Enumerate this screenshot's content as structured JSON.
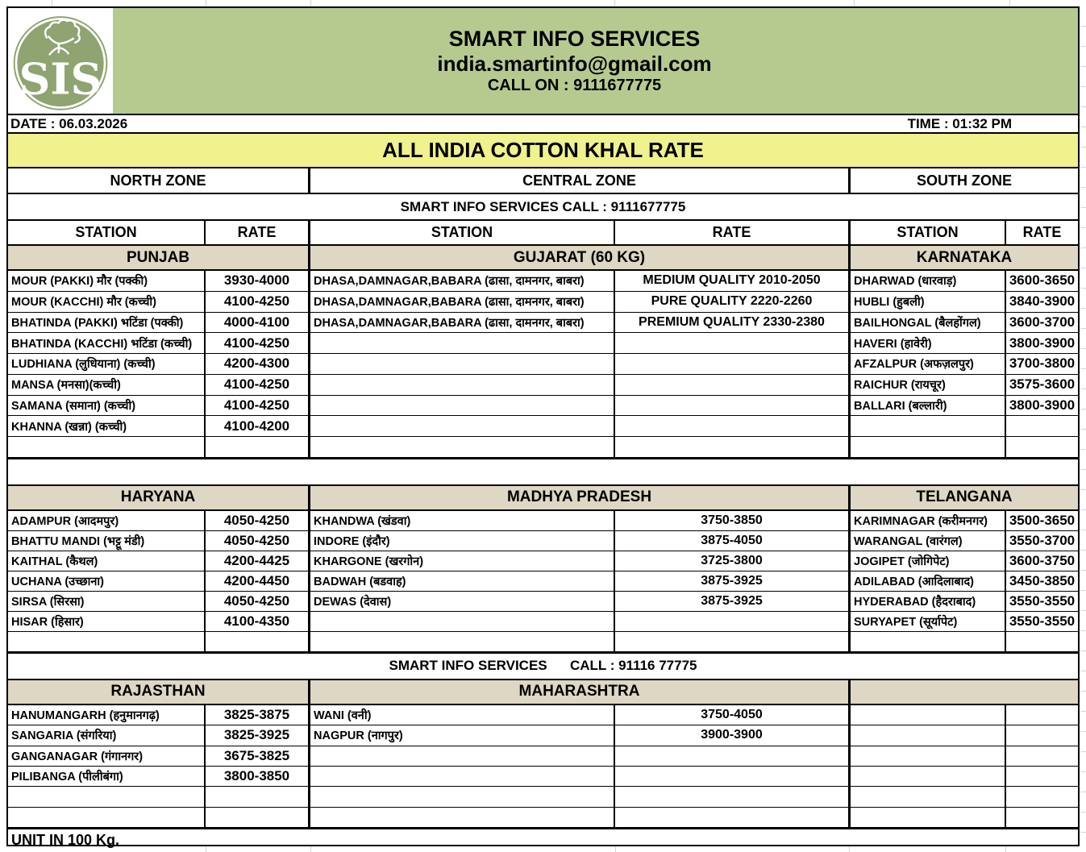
{
  "header": {
    "company": "SMART INFO SERVICES",
    "email": "india.smartinfo@gmail.com",
    "call_on": "CALL ON : 9111677775",
    "date": "DATE : 06.03.2026",
    "time": "TIME : 01:32 PM",
    "title": "ALL INDIA COTTON KHAL RATE"
  },
  "colors": {
    "banner_green": "#b6ca90",
    "title_yellow": "#eff28d",
    "section_beige": "#ddd7c3",
    "logo_green": "#8fa471"
  },
  "logo": {
    "icon": "cotton-plant-sis-monogram",
    "letters": "SIS"
  },
  "zones": [
    "NORTH ZONE",
    "CENTRAL ZONE",
    "SOUTH ZONE"
  ],
  "call_banner_top": "SMART INFO SERVICES CALL : 9111677775",
  "call_banner_mid": "SMART INFO SERVICES      CALL : 91116 77775",
  "column_headers": [
    "STATION",
    "RATE",
    "STATION",
    "RATE",
    "STATION",
    "RATE"
  ],
  "footer": "UNIT IN 100 Kg.",
  "blocks": [
    {
      "rows": 9,
      "sections": [
        "PUNJAB",
        "GUJARAT (60 KG)",
        "KARNATAKA"
      ],
      "left": [
        [
          "MOUR (PAKKI) मौर (पक्की)",
          "3930-4000"
        ],
        [
          "MOUR (KACCHI) मौर (कच्ची)",
          "4100-4250"
        ],
        [
          "BHATINDA (PAKKI) भटिंडा (पक्की)",
          "4000-4100"
        ],
        [
          "BHATINDA (KACCHI) भटिंडा (कच्ची)",
          "4100-4250"
        ],
        [
          "LUDHIANA (लुधियाना) (कच्ची)",
          "4200-4300"
        ],
        [
          "MANSA (मनसा)(कच्ची)",
          "4100-4250"
        ],
        [
          "SAMANA (समाना) (कच्ची)",
          "4100-4250"
        ],
        [
          "KHANNA (खन्ना) (कच्ची)",
          "4100-4200"
        ],
        [
          "",
          ""
        ]
      ],
      "center": [
        [
          "DHASA,DAMNAGAR,BABARA (ढासा, दामनगर, बाबरा)",
          "MEDIUM QUALITY 2010-2050"
        ],
        [
          "DHASA,DAMNAGAR,BABARA (ढासा, दामनगर, बाबरा)",
          "PURE QUALITY 2220-2260"
        ],
        [
          "DHASA,DAMNAGAR,BABARA (ढासा, दामनगर, बाबरा)",
          "PREMIUM QUALITY 2330-2380"
        ],
        [
          "",
          ""
        ],
        [
          "",
          ""
        ],
        [
          "",
          ""
        ],
        [
          "",
          ""
        ],
        [
          "",
          ""
        ],
        [
          "",
          ""
        ]
      ],
      "right": [
        [
          "DHARWAD (धारवाड़)",
          "3600-3650"
        ],
        [
          "HUBLI (हुबली)",
          "3840-3900"
        ],
        [
          "BAILHONGAL (बैलहोंगल)",
          "3600-3700"
        ],
        [
          "HAVERI (हावेरी)",
          "3800-3900"
        ],
        [
          "AFZALPUR (अफज़लपुर)",
          "3700-3800"
        ],
        [
          "RAICHUR (रायचूर)",
          "3575-3600"
        ],
        [
          "BALLARI (बल्लारी)",
          "3800-3900"
        ],
        [
          "",
          ""
        ],
        [
          "",
          ""
        ]
      ]
    },
    {
      "rows": 7,
      "sections": [
        "HARYANA",
        "MADHYA PRADESH",
        "TELANGANA"
      ],
      "left": [
        [
          "ADAMPUR (आदमपुर)",
          "4050-4250"
        ],
        [
          "BHATTU MANDI (भट्टू मंडी)",
          "4050-4250"
        ],
        [
          "KAITHAL (कैथल)",
          "4200-4425"
        ],
        [
          "UCHANA (उच्छाना)",
          "4200-4450"
        ],
        [
          "SIRSA (सिरसा)",
          "4050-4250"
        ],
        [
          "HISAR (हिसार)",
          "4100-4350"
        ],
        [
          "",
          ""
        ]
      ],
      "center": [
        [
          "KHANDWA (खंडवा)",
          "3750-3850"
        ],
        [
          "INDORE (इंदौर)",
          "3875-4050"
        ],
        [
          "KHARGONE (खरगोन)",
          "3725-3800"
        ],
        [
          "BADWAH (बडवाह)",
          "3875-3925"
        ],
        [
          "DEWAS (देवास)",
          "3875-3925"
        ],
        [
          "",
          ""
        ],
        [
          "",
          ""
        ]
      ],
      "right": [
        [
          "KARIMNAGAR (करीमनगर)",
          "3500-3650"
        ],
        [
          "WARANGAL (वारंगल)",
          "3550-3700"
        ],
        [
          "JOGIPET (जोगिपेट)",
          "3600-3750"
        ],
        [
          "ADILABAD (आदिलाबाद)",
          "3450-3850"
        ],
        [
          "HYDERABAD (हैदराबाद)",
          "3550-3550"
        ],
        [
          "SURYAPET (सूर्यापेट)",
          "3550-3550"
        ],
        [
          "",
          ""
        ]
      ]
    },
    {
      "rows": 6,
      "sections": [
        "RAJASTHAN",
        "MAHARASHTRA",
        ""
      ],
      "left": [
        [
          "HANUMANGARH (हनुमानगढ़)",
          "3825-3875"
        ],
        [
          "SANGARIA (संगरिया)",
          "3825-3925"
        ],
        [
          "GANGANAGAR (गंगानगर)",
          "3675-3825"
        ],
        [
          "PILIBANGA (पीलीबंगा)",
          "3800-3850"
        ],
        [
          "",
          ""
        ],
        [
          "",
          ""
        ]
      ],
      "center": [
        [
          "WANI (वनी)",
          "3750-4050"
        ],
        [
          "NAGPUR (नागपुर)",
          "3900-3900"
        ],
        [
          "",
          ""
        ],
        [
          "",
          ""
        ],
        [
          "",
          ""
        ],
        [
          "",
          ""
        ]
      ],
      "right": [
        [
          "",
          ""
        ],
        [
          "",
          ""
        ],
        [
          "",
          ""
        ],
        [
          "",
          ""
        ],
        [
          "",
          ""
        ],
        [
          "",
          ""
        ]
      ]
    }
  ]
}
